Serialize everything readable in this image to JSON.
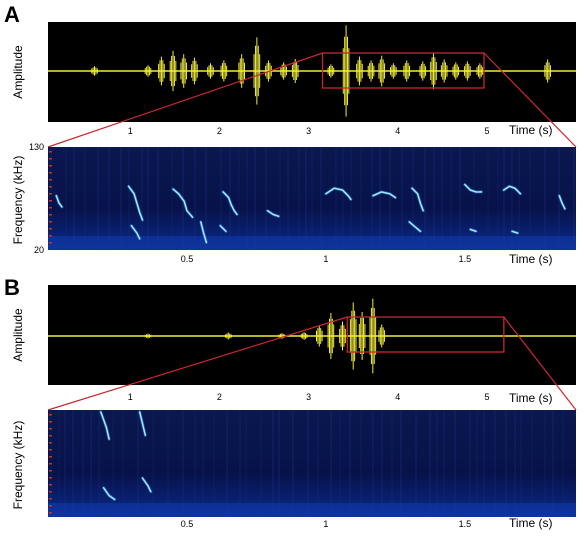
{
  "colors": {
    "waveform": "#f2ee3a",
    "zoom_box": "#c8282d",
    "amplitude_bg": "#000000",
    "spectrogram_bg": "#06103a",
    "contour": "#9ef2ff"
  },
  "chart_data": [
    {
      "panel": "A",
      "type": "line",
      "subtype": "waveform",
      "xlabel": "Time (s)",
      "ylabel": "Amplitude",
      "xticks": [
        1,
        2,
        3,
        4,
        5
      ],
      "xlim": [
        0,
        5.8
      ],
      "zoom_window": [
        3.1,
        5.0
      ],
      "bursts": [
        {
          "t": 0.6,
          "a": 0.1
        },
        {
          "t": 1.2,
          "a": 0.12
        },
        {
          "t": 1.35,
          "a": 0.3
        },
        {
          "t": 1.48,
          "a": 0.42
        },
        {
          "t": 1.6,
          "a": 0.35
        },
        {
          "t": 1.72,
          "a": 0.28
        },
        {
          "t": 1.9,
          "a": 0.16
        },
        {
          "t": 2.05,
          "a": 0.22
        },
        {
          "t": 2.25,
          "a": 0.35
        },
        {
          "t": 2.42,
          "a": 0.7
        },
        {
          "t": 2.55,
          "a": 0.22
        },
        {
          "t": 2.72,
          "a": 0.18
        },
        {
          "t": 2.85,
          "a": 0.25
        },
        {
          "t": 3.25,
          "a": 0.14
        },
        {
          "t": 3.42,
          "a": 0.95
        },
        {
          "t": 3.57,
          "a": 0.3
        },
        {
          "t": 3.7,
          "a": 0.22
        },
        {
          "t": 3.82,
          "a": 0.32
        },
        {
          "t": 3.95,
          "a": 0.16
        },
        {
          "t": 4.1,
          "a": 0.22
        },
        {
          "t": 4.28,
          "a": 0.2
        },
        {
          "t": 4.4,
          "a": 0.38
        },
        {
          "t": 4.52,
          "a": 0.24
        },
        {
          "t": 4.65,
          "a": 0.18
        },
        {
          "t": 4.78,
          "a": 0.2
        },
        {
          "t": 4.92,
          "a": 0.16
        },
        {
          "t": 5.68,
          "a": 0.24
        }
      ]
    },
    {
      "panel": "A",
      "type": "heatmap",
      "subtype": "spectrogram",
      "xlabel": "Time (s)",
      "ylabel": "Frequency (kHz)",
      "xticks": [
        0.5,
        1,
        1.5
      ],
      "xlim": [
        0,
        1.9
      ],
      "ylim": [
        20,
        130
      ],
      "ytick_labels": [
        "130",
        "20"
      ],
      "contours": [
        {
          "points": [
            [
              0.03,
              78
            ],
            [
              0.04,
              70
            ],
            [
              0.05,
              66
            ]
          ]
        },
        {
          "points": [
            [
              0.29,
              88
            ],
            [
              0.31,
              80
            ],
            [
              0.32,
              70
            ],
            [
              0.33,
              60
            ],
            [
              0.34,
              52
            ]
          ]
        },
        {
          "points": [
            [
              0.3,
              46
            ],
            [
              0.32,
              38
            ],
            [
              0.33,
              32
            ]
          ]
        },
        {
          "points": [
            [
              0.45,
              85
            ],
            [
              0.47,
              80
            ],
            [
              0.49,
              72
            ],
            [
              0.5,
              62
            ],
            [
              0.52,
              55
            ]
          ]
        },
        {
          "points": [
            [
              0.55,
              50
            ],
            [
              0.56,
              38
            ],
            [
              0.57,
              28
            ]
          ]
        },
        {
          "points": [
            [
              0.63,
              82
            ],
            [
              0.65,
              76
            ],
            [
              0.66,
              68
            ],
            [
              0.67,
              62
            ],
            [
              0.68,
              58
            ]
          ]
        },
        {
          "points": [
            [
              0.62,
              46
            ],
            [
              0.64,
              40
            ]
          ]
        },
        {
          "points": [
            [
              0.79,
              62
            ],
            [
              0.81,
              58
            ],
            [
              0.83,
              56
            ]
          ]
        },
        {
          "points": [
            [
              1.0,
              80
            ],
            [
              1.03,
              86
            ],
            [
              1.06,
              84
            ],
            [
              1.08,
              78
            ],
            [
              1.09,
              74
            ]
          ]
        },
        {
          "points": [
            [
              1.17,
              78
            ],
            [
              1.2,
              82
            ],
            [
              1.23,
              80
            ],
            [
              1.25,
              76
            ]
          ]
        },
        {
          "points": [
            [
              1.31,
              86
            ],
            [
              1.33,
              80
            ],
            [
              1.34,
              70
            ],
            [
              1.35,
              62
            ]
          ]
        },
        {
          "points": [
            [
              1.3,
              50
            ],
            [
              1.32,
              45
            ],
            [
              1.34,
              40
            ]
          ]
        },
        {
          "points": [
            [
              1.5,
              90
            ],
            [
              1.52,
              84
            ],
            [
              1.54,
              82
            ],
            [
              1.56,
              82
            ]
          ]
        },
        {
          "points": [
            [
              1.52,
              42
            ],
            [
              1.54,
              40
            ]
          ]
        },
        {
          "points": [
            [
              1.64,
              84
            ],
            [
              1.66,
              88
            ],
            [
              1.68,
              86
            ],
            [
              1.7,
              80
            ]
          ]
        },
        {
          "points": [
            [
              1.67,
              40
            ],
            [
              1.69,
              38
            ]
          ]
        },
        {
          "points": [
            [
              1.84,
              78
            ],
            [
              1.85,
              70
            ],
            [
              1.86,
              64
            ]
          ]
        }
      ]
    },
    {
      "panel": "B",
      "type": "line",
      "subtype": "waveform",
      "xlabel": "Time (s)",
      "ylabel": "Amplitude",
      "xticks": [
        1,
        2,
        3,
        4,
        5
      ],
      "xlim": [
        0,
        5.8
      ],
      "zoom_window": [
        3.4,
        5.2
      ],
      "bursts": [
        {
          "t": 1.2,
          "a": 0.05
        },
        {
          "t": 2.1,
          "a": 0.07
        },
        {
          "t": 2.7,
          "a": 0.06
        },
        {
          "t": 2.95,
          "a": 0.08
        },
        {
          "t": 3.12,
          "a": 0.22
        },
        {
          "t": 3.25,
          "a": 0.48
        },
        {
          "t": 3.38,
          "a": 0.3
        },
        {
          "t": 3.5,
          "a": 0.7
        },
        {
          "t": 3.6,
          "a": 0.5
        },
        {
          "t": 3.72,
          "a": 0.78
        },
        {
          "t": 3.82,
          "a": 0.24
        }
      ]
    },
    {
      "panel": "B",
      "type": "heatmap",
      "subtype": "spectrogram",
      "xlabel": "Time (s)",
      "ylabel": "Frequency (kHz)",
      "xticks": [
        0.5,
        1,
        1.5
      ],
      "xlim": [
        0,
        1.9
      ],
      "ylim": [
        20,
        130
      ],
      "contours": [
        {
          "points": [
            [
              0.19,
              128
            ],
            [
              0.2,
              120
            ],
            [
              0.21,
              112
            ],
            [
              0.22,
              100
            ]
          ]
        },
        {
          "points": [
            [
              0.2,
              50
            ],
            [
              0.22,
              42
            ],
            [
              0.24,
              38
            ]
          ]
        },
        {
          "points": [
            [
              0.33,
              128
            ],
            [
              0.34,
              116
            ],
            [
              0.35,
              104
            ]
          ]
        },
        {
          "points": [
            [
              0.34,
              60
            ],
            [
              0.36,
              52
            ],
            [
              0.37,
              46
            ]
          ]
        }
      ]
    }
  ],
  "panels": {
    "A": {
      "letter": "A",
      "waveform": {
        "ylabel": "Amplitude",
        "xlabel": "Time (s)",
        "tick_labels": [
          "1",
          "2",
          "3",
          "4",
          "5"
        ]
      },
      "spectrogram": {
        "ylabel": "Frequency (kHz)",
        "xlabel": "Time (s)",
        "ytick_top": "130",
        "ytick_bottom": "20",
        "tick_labels": [
          "0.5",
          "1",
          "1.5"
        ]
      }
    },
    "B": {
      "letter": "B",
      "waveform": {
        "ylabel": "Amplitude",
        "xlabel": "Time (s)",
        "tick_labels": [
          "1",
          "2",
          "3",
          "4",
          "5"
        ]
      },
      "spectrogram": {
        "ylabel": "Frequency (kHz)",
        "xlabel": "Time (s)",
        "tick_labels": [
          "0.5",
          "1",
          "1.5"
        ]
      }
    }
  }
}
